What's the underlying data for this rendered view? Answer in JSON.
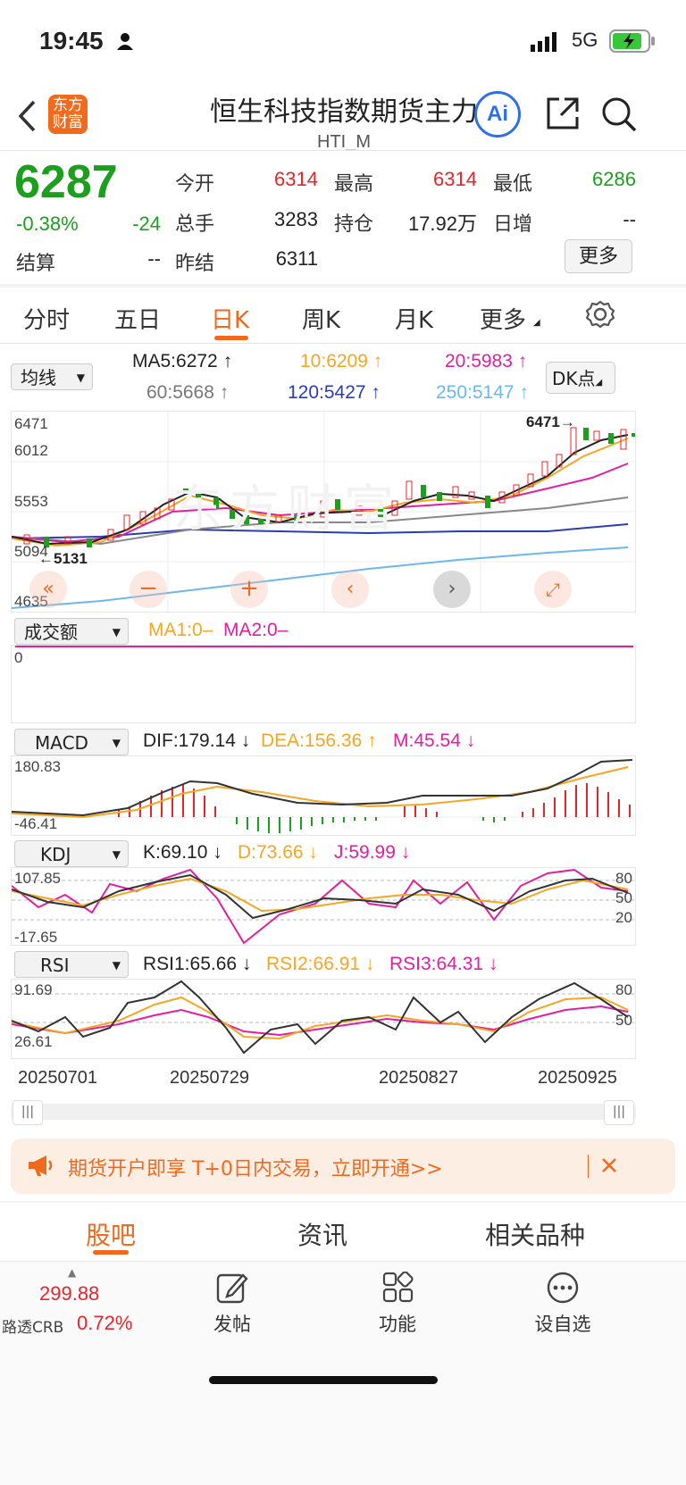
{
  "status_bar": {
    "time": "19:45",
    "network": "5G"
  },
  "nav": {
    "title": "恒生科技指数期货主力",
    "subtitle": "HTI_M",
    "logo_line1": "东方",
    "logo_line2": "财富",
    "ai_label": "Ai"
  },
  "quote": {
    "price": "6287",
    "change_pct": "-0.38%",
    "change": "-24",
    "open_label": "今开",
    "open": "6314",
    "high_label": "最高",
    "high": "6314",
    "low_label": "最低",
    "low": "6286",
    "volume_label": "总手",
    "volume": "3283",
    "position_label": "持仓",
    "position": "17.92万",
    "daily_inc_label": "日增",
    "daily_inc": "--",
    "settle_label": "结算",
    "settle": "--",
    "prev_settle_label": "昨结",
    "prev_settle": "6311",
    "more_button": "更多"
  },
  "tabs": [
    "分时",
    "五日",
    "日K",
    "周K",
    "月K",
    "更多"
  ],
  "active_tab": 2,
  "ma_bar": {
    "selector": "均线",
    "ma5": "MA5:6272",
    "ma10": "10:6209",
    "ma20": "20:5983",
    "ma60": "60:5668",
    "ma120": "120:5427",
    "ma250": "250:5147",
    "dk_button": "DK点"
  },
  "kline": {
    "y_labels": [
      "6471",
      "6012",
      "5553",
      "5094",
      "4635"
    ],
    "max_marker": "6471",
    "min_marker": "5131",
    "watermark": "东方财富"
  },
  "volume_panel": {
    "selector": "成交额",
    "ma1": "MA1:0–",
    "ma2": "MA2:0–",
    "zero": "0"
  },
  "macd_panel": {
    "selector": "MACD",
    "dif": "DIF:179.14",
    "dea": "DEA:156.36",
    "m": "M:45.54",
    "top": "180.83",
    "bottom": "-46.41"
  },
  "kdj_panel": {
    "selector": "KDJ",
    "k": "K:69.10",
    "d": "D:73.66",
    "j": "J:59.99",
    "top": "107.85",
    "bottom": "-17.65",
    "levels": [
      "80",
      "50",
      "20"
    ]
  },
  "rsi_panel": {
    "selector": "RSI",
    "rsi1": "RSI1:65.66",
    "rsi2": "RSI2:66.91",
    "rsi3": "RSI3:64.31",
    "top": "91.69",
    "bottom": "26.61",
    "levels": [
      "80",
      "50"
    ]
  },
  "dates": [
    "20250701",
    "20250729",
    "20250827",
    "20250925"
  ],
  "banner": {
    "text": "期货开户即享 T+0日内交易，立即开通>>"
  },
  "bottom_tabs": [
    "股吧",
    "资讯",
    "相关品种"
  ],
  "bottom_bar": {
    "ticker_value": "299.88",
    "ticker_name": "路透CRB",
    "ticker_change": "0.72%",
    "post": "发帖",
    "function": "功能",
    "watchlist": "设自选"
  },
  "colors": {
    "up": "#e8242c",
    "down": "#1e9e1e",
    "accent": "#f06a1e",
    "ma5": "#222222",
    "ma10": "#f5a623",
    "ma20": "#e020a0",
    "ma60": "#888888",
    "ma120": "#2a3db5",
    "ma250": "#6bb8f0"
  }
}
